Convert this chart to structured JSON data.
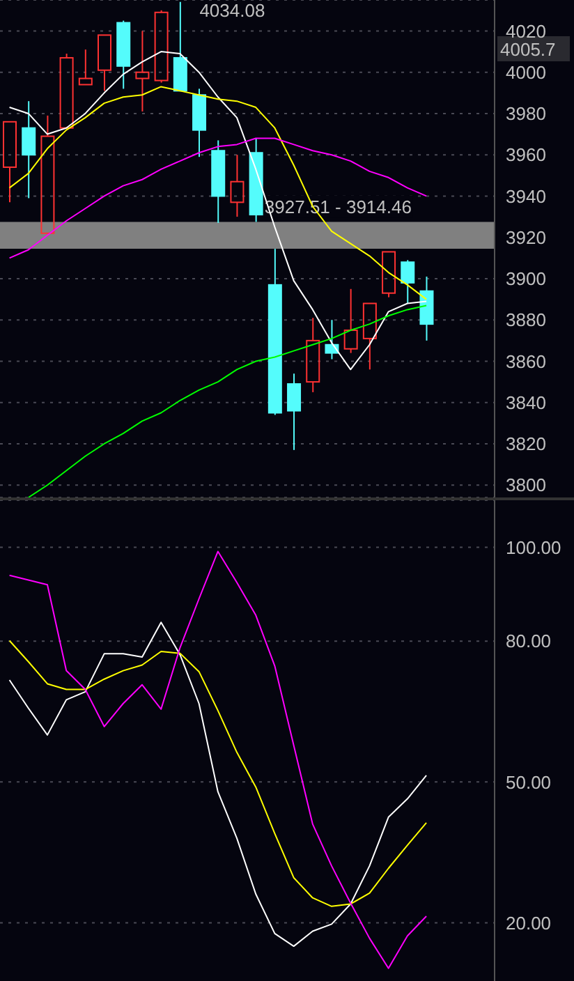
{
  "chart_data": [
    {
      "type": "candlestick",
      "categories": [
        null,
        null,
        null,
        null,
        null,
        null,
        null,
        null,
        null,
        null,
        null,
        null,
        null,
        null,
        null,
        null,
        null,
        null,
        null,
        null,
        null,
        null,
        null
      ],
      "ohlc": [
        [
          3954,
          3976,
          3937,
          3976
        ],
        [
          3973,
          3986,
          3939,
          3960
        ],
        [
          3922,
          3979,
          3922,
          3969
        ],
        [
          3973,
          4009,
          3973,
          4007
        ],
        [
          3994,
          4011,
          3994,
          3997
        ],
        [
          4001,
          4018,
          3991,
          4018
        ],
        [
          4024,
          4025,
          3992,
          4003
        ],
        [
          3997,
          4020,
          3981,
          4000
        ],
        [
          3996,
          4030,
          3995,
          4029
        ],
        [
          4007,
          4034.08,
          3991,
          3991
        ],
        [
          3989,
          3992,
          3959,
          3972
        ],
        [
          3962,
          3967,
          3927,
          3940
        ],
        [
          3937,
          3960,
          3930,
          3947
        ],
        [
          3961,
          3968,
          3927.51,
          3931
        ],
        [
          3897,
          3914.46,
          3834,
          3835
        ],
        [
          3849,
          3854,
          3817,
          3836
        ],
        [
          3850,
          3881,
          3845,
          3870
        ],
        [
          3868,
          3880,
          3861,
          3864
        ],
        [
          3866,
          3895,
          3864,
          3875
        ],
        [
          3871,
          3888,
          3856,
          3888
        ],
        [
          3893,
          3913,
          3891,
          3913
        ],
        [
          3908,
          3909,
          3888,
          3898
        ],
        [
          3894,
          3901,
          3870,
          3878
        ]
      ],
      "colors": [
        "#ff3232",
        "#54fcfc",
        "#ff3232",
        "#ff3232",
        "#ff3232",
        "#ff3232",
        "#54fcfc",
        "#ff3232",
        "#ff3232",
        "#54fcfc",
        "#54fcfc",
        "#54fcfc",
        "#ff3232",
        "#54fcfc",
        "#54fcfc",
        "#54fcfc",
        "#ff3232",
        "#54fcfc",
        "#ff3232",
        "#ff3232",
        "#ff3232",
        "#54fcfc",
        "#54fcfc"
      ],
      "series": [
        {
          "type": "line",
          "color": "#ffffff",
          "values": [
            3983,
            3980,
            3970,
            3973,
            3980,
            3990,
            3999,
            4005,
            4010,
            4009,
            4000,
            3988,
            3978,
            3953,
            3925,
            3899,
            3885,
            3869,
            3856,
            3868,
            3884,
            3888,
            3889
          ]
        },
        {
          "type": "line",
          "color": "#ffff00",
          "values": [
            3944,
            3951,
            3963,
            3972,
            3978,
            3985,
            3988,
            3989,
            3993,
            3991,
            3989,
            3987,
            3986,
            3983,
            3973,
            3955,
            3935,
            3923,
            3917,
            3911,
            3903,
            3897,
            3890
          ]
        },
        {
          "type": "line",
          "color": "#ff00ff",
          "values": [
            3910,
            3914,
            3921,
            3928,
            3934,
            3940,
            3945,
            3948,
            3953,
            3957,
            3961,
            3964,
            3965,
            3968,
            3968,
            3965,
            3962,
            3960,
            3957,
            3952,
            3949,
            3944,
            3940
          ]
        },
        {
          "type": "line",
          "color": "#00ff00",
          "values": [
            null,
            3794,
            3800,
            3807,
            3814,
            3820,
            3825,
            3831,
            3835,
            3841,
            3846,
            3850,
            3856,
            3860,
            3862,
            3865,
            3868,
            3871,
            3875,
            3878,
            3882,
            3885,
            3887
          ]
        }
      ],
      "ylim": [
        3794,
        4035
      ],
      "yticks": [
        3800,
        3820,
        3840,
        3860,
        3880,
        3900,
        3920,
        3940,
        3960,
        3980,
        4000,
        4020
      ],
      "grid": "y",
      "tick_labels": "y",
      "bands": [
        {
          "axis": "y",
          "from": 3914.46,
          "to": 3927.51,
          "label": "3927.51 - 3914.46",
          "color": "#808080"
        }
      ],
      "annotations": [
        "4034.08",
        "4005.7"
      ]
    },
    {
      "type": "line",
      "categories": [
        null,
        null,
        null,
        null,
        null,
        null,
        null,
        null,
        null,
        null,
        null,
        null,
        null,
        null,
        null,
        null,
        null,
        null,
        null,
        null,
        null,
        null,
        null
      ],
      "series": [
        {
          "color": "#ffffff",
          "values": [
            71.7,
            65.7,
            60,
            67.5,
            69.2,
            77.3,
            77.3,
            76.6,
            84,
            77.1,
            66.7,
            47.9,
            38,
            26.1,
            17.7,
            15,
            18.2,
            19.7,
            24,
            32.1,
            42.5,
            46.4,
            51.4
          ]
        },
        {
          "color": "#ffff00",
          "values": [
            80.1,
            75.6,
            70.9,
            69.7,
            69.7,
            71.9,
            73.7,
            74.9,
            77.8,
            77.4,
            73.5,
            65.2,
            56.3,
            48.9,
            39,
            29.6,
            25.3,
            23.5,
            24,
            26.3,
            31.6,
            36.5,
            41.3
          ]
        },
        {
          "color": "#ff00ff",
          "values": [
            94,
            93,
            92,
            73.7,
            69.7,
            61.8,
            66.7,
            70.7,
            65.5,
            78.6,
            89,
            99.1,
            92.5,
            85.5,
            74.7,
            57.8,
            41,
            32.1,
            24.2,
            16.7,
            10.3,
            17.2,
            21.4
          ]
        }
      ],
      "ylim": [
        7,
        110
      ],
      "yticks": [
        {
          "value": 20,
          "label": "20.00"
        },
        {
          "value": 50,
          "label": "50.00"
        },
        {
          "value": 80,
          "label": "80.00"
        },
        {
          "value": 100,
          "label": "100.00"
        }
      ],
      "grid": "y",
      "tick_labels": "y"
    }
  ]
}
